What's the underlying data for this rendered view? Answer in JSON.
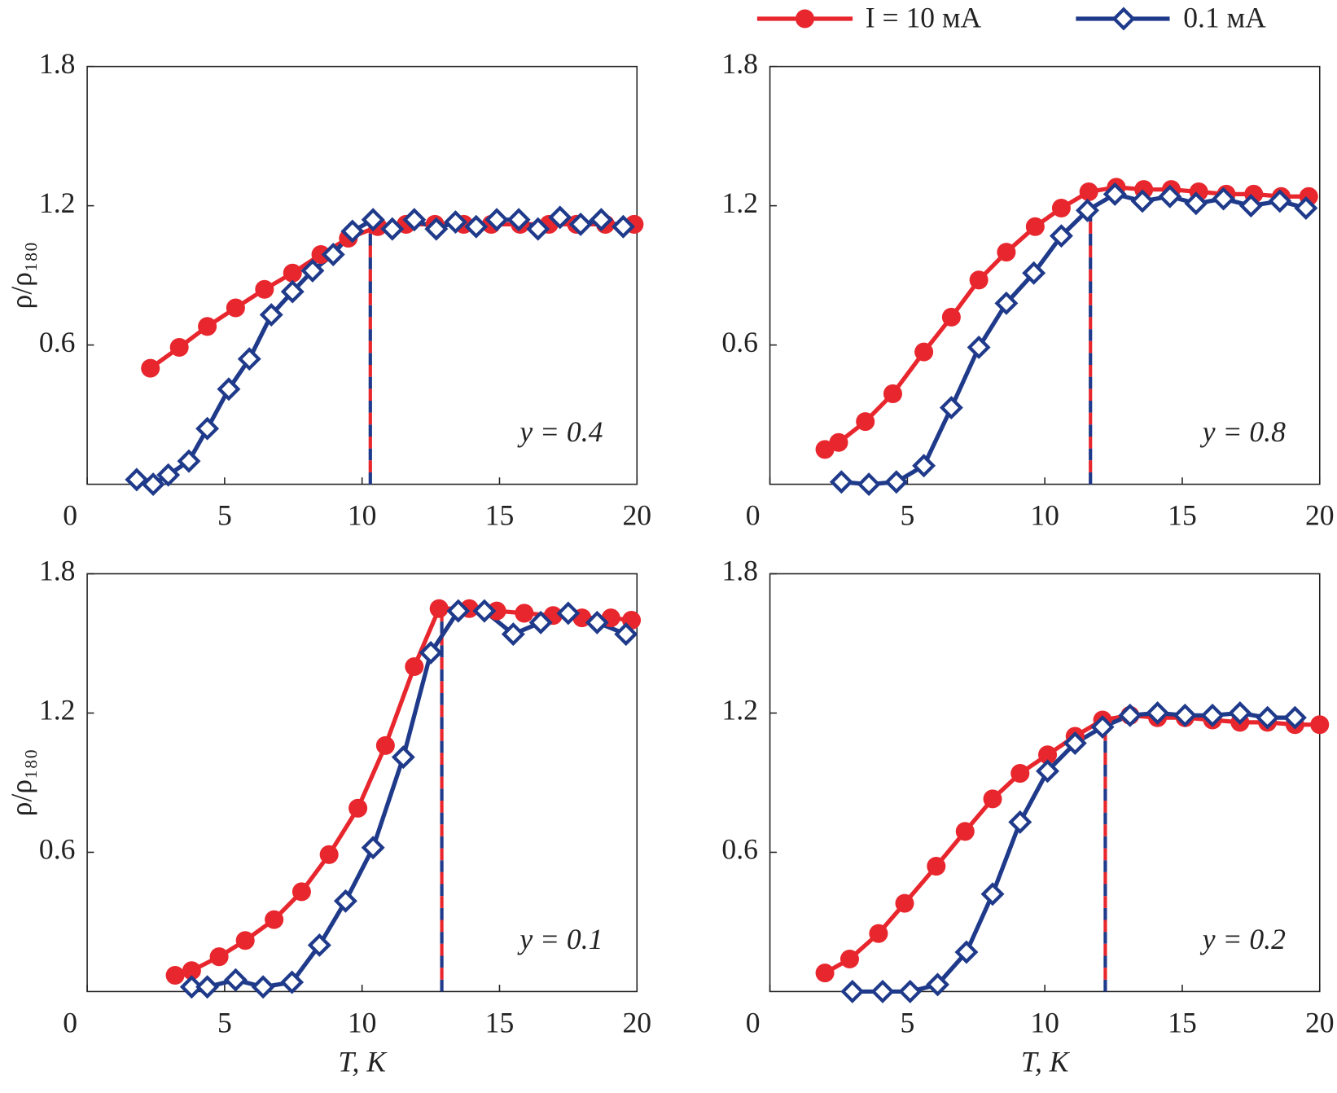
{
  "chart_data": [
    {
      "type": "line",
      "ylabel": "ρ/ρ₁₈₀",
      "annotation": "y = 0.4",
      "xlim": [
        0,
        20
      ],
      "xticks": [
        0,
        5,
        10,
        15,
        20
      ],
      "ylim": [
        0,
        1.8
      ],
      "yticks": [
        0.6,
        1.2,
        1.8
      ],
      "vline": {
        "x": 10.3,
        "y": 1.12
      },
      "series": [
        {
          "name": "I = 10 мА",
          "color": "#e8262d",
          "marker": "circle",
          "x": [
            2.3,
            3.35,
            4.37,
            5.4,
            6.45,
            7.47,
            8.5,
            9.5,
            10.57,
            11.6,
            12.65,
            13.7,
            14.7,
            15.75,
            16.8,
            17.8,
            18.85,
            19.9
          ],
          "values": [
            0.5,
            0.59,
            0.68,
            0.76,
            0.84,
            0.91,
            0.99,
            1.06,
            1.11,
            1.12,
            1.12,
            1.12,
            1.12,
            1.12,
            1.12,
            1.12,
            1.12,
            1.12
          ]
        },
        {
          "name": "0.1 мА",
          "color": "#1f3a8a",
          "marker": "diamond",
          "x": [
            1.8,
            2.4,
            2.95,
            3.7,
            4.37,
            5.15,
            5.9,
            6.7,
            7.47,
            8.2,
            8.95,
            9.65,
            10.4,
            11.1,
            11.9,
            12.7,
            13.4,
            14.15,
            14.9,
            15.7,
            16.4,
            17.2,
            17.95,
            18.7,
            19.5
          ],
          "values": [
            0.02,
            0.0,
            0.04,
            0.1,
            0.24,
            0.41,
            0.54,
            0.73,
            0.83,
            0.92,
            0.99,
            1.09,
            1.14,
            1.1,
            1.14,
            1.1,
            1.13,
            1.11,
            1.14,
            1.14,
            1.1,
            1.15,
            1.12,
            1.14,
            1.11
          ]
        }
      ]
    },
    {
      "type": "line",
      "annotation": "y = 0.8",
      "xlim": [
        0,
        20
      ],
      "xticks": [
        0,
        5,
        10,
        15,
        20
      ],
      "ylim": [
        0,
        1.8
      ],
      "yticks": [
        0.6,
        1.2,
        1.8
      ],
      "vline": {
        "x": 11.66,
        "y": 1.2
      },
      "series": [
        {
          "color": "#e8262d",
          "marker": "circle",
          "x": [
            2.0,
            2.5,
            3.47,
            4.47,
            5.6,
            6.6,
            7.6,
            8.6,
            9.65,
            10.6,
            11.6,
            12.6,
            13.6,
            14.6,
            15.6,
            16.6,
            17.6,
            18.6,
            19.6
          ],
          "values": [
            0.15,
            0.18,
            0.27,
            0.39,
            0.57,
            0.72,
            0.88,
            1.0,
            1.11,
            1.19,
            1.26,
            1.28,
            1.27,
            1.27,
            1.26,
            1.25,
            1.25,
            1.24,
            1.24
          ]
        },
        {
          "color": "#1f3a8a",
          "marker": "diamond",
          "x": [
            2.6,
            3.6,
            4.6,
            5.6,
            6.6,
            7.6,
            8.6,
            9.6,
            10.6,
            11.55,
            12.55,
            13.55,
            14.55,
            15.5,
            16.5,
            17.5,
            18.55,
            19.5
          ],
          "values": [
            0.01,
            0.0,
            0.01,
            0.08,
            0.33,
            0.59,
            0.78,
            0.91,
            1.07,
            1.18,
            1.25,
            1.22,
            1.24,
            1.21,
            1.23,
            1.2,
            1.22,
            1.19
          ]
        }
      ]
    },
    {
      "type": "line",
      "ylabel": "ρ/ρ₁₈₀",
      "xlabel": "T, K",
      "annotation": "y = 0.1",
      "xlim": [
        0,
        20
      ],
      "xticks": [
        0,
        5,
        10,
        15,
        20
      ],
      "ylim": [
        0,
        1.8
      ],
      "yticks": [
        0.6,
        1.2,
        1.8
      ],
      "vline": {
        "x": 12.9,
        "y": 1.65
      },
      "series": [
        {
          "color": "#e8262d",
          "marker": "circle",
          "x": [
            3.2,
            3.8,
            4.8,
            5.75,
            6.8,
            7.8,
            8.8,
            9.85,
            10.85,
            11.9,
            12.8,
            13.9,
            14.9,
            15.9,
            16.95,
            18.0,
            19.05,
            19.8
          ],
          "values": [
            0.07,
            0.09,
            0.15,
            0.22,
            0.31,
            0.43,
            0.59,
            0.79,
            1.06,
            1.4,
            1.65,
            1.65,
            1.64,
            1.63,
            1.62,
            1.61,
            1.61,
            1.6
          ]
        },
        {
          "color": "#1f3a8a",
          "marker": "diamond",
          "x": [
            3.8,
            4.37,
            5.4,
            6.4,
            7.45,
            8.45,
            9.4,
            10.4,
            11.5,
            12.5,
            13.5,
            14.45,
            15.5,
            16.5,
            17.5,
            18.55,
            19.6
          ],
          "values": [
            0.02,
            0.02,
            0.05,
            0.02,
            0.04,
            0.2,
            0.39,
            0.62,
            1.01,
            1.46,
            1.64,
            1.64,
            1.54,
            1.59,
            1.63,
            1.59,
            1.54
          ]
        }
      ]
    },
    {
      "type": "line",
      "xlabel": "T, K",
      "annotation": "y = 0.2",
      "xlim": [
        0,
        20
      ],
      "xticks": [
        0,
        5,
        10,
        15,
        20
      ],
      "ylim": [
        0,
        1.8
      ],
      "yticks": [
        0.6,
        1.2,
        1.8
      ],
      "vline": {
        "x": 12.2,
        "y": 1.17
      },
      "series": [
        {
          "color": "#e8262d",
          "marker": "circle",
          "x": [
            2.0,
            2.9,
            3.95,
            4.9,
            6.05,
            7.1,
            8.1,
            9.1,
            10.1,
            11.1,
            12.1,
            13.1,
            14.1,
            15.1,
            16.1,
            17.1,
            18.1,
            19.1,
            20.0
          ],
          "values": [
            0.08,
            0.14,
            0.25,
            0.38,
            0.54,
            0.69,
            0.83,
            0.94,
            1.02,
            1.1,
            1.17,
            1.19,
            1.18,
            1.18,
            1.17,
            1.16,
            1.16,
            1.15,
            1.15
          ]
        },
        {
          "color": "#1f3a8a",
          "marker": "diamond",
          "x": [
            3.0,
            4.1,
            5.1,
            6.1,
            7.15,
            8.1,
            9.1,
            10.1,
            11.1,
            12.1,
            13.1,
            14.1,
            15.1,
            16.1,
            17.1,
            18.1,
            19.1
          ],
          "values": [
            0.0,
            0.0,
            0.0,
            0.03,
            0.17,
            0.42,
            0.73,
            0.95,
            1.07,
            1.14,
            1.19,
            1.2,
            1.19,
            1.19,
            1.2,
            1.18,
            1.18
          ]
        }
      ]
    }
  ]
}
